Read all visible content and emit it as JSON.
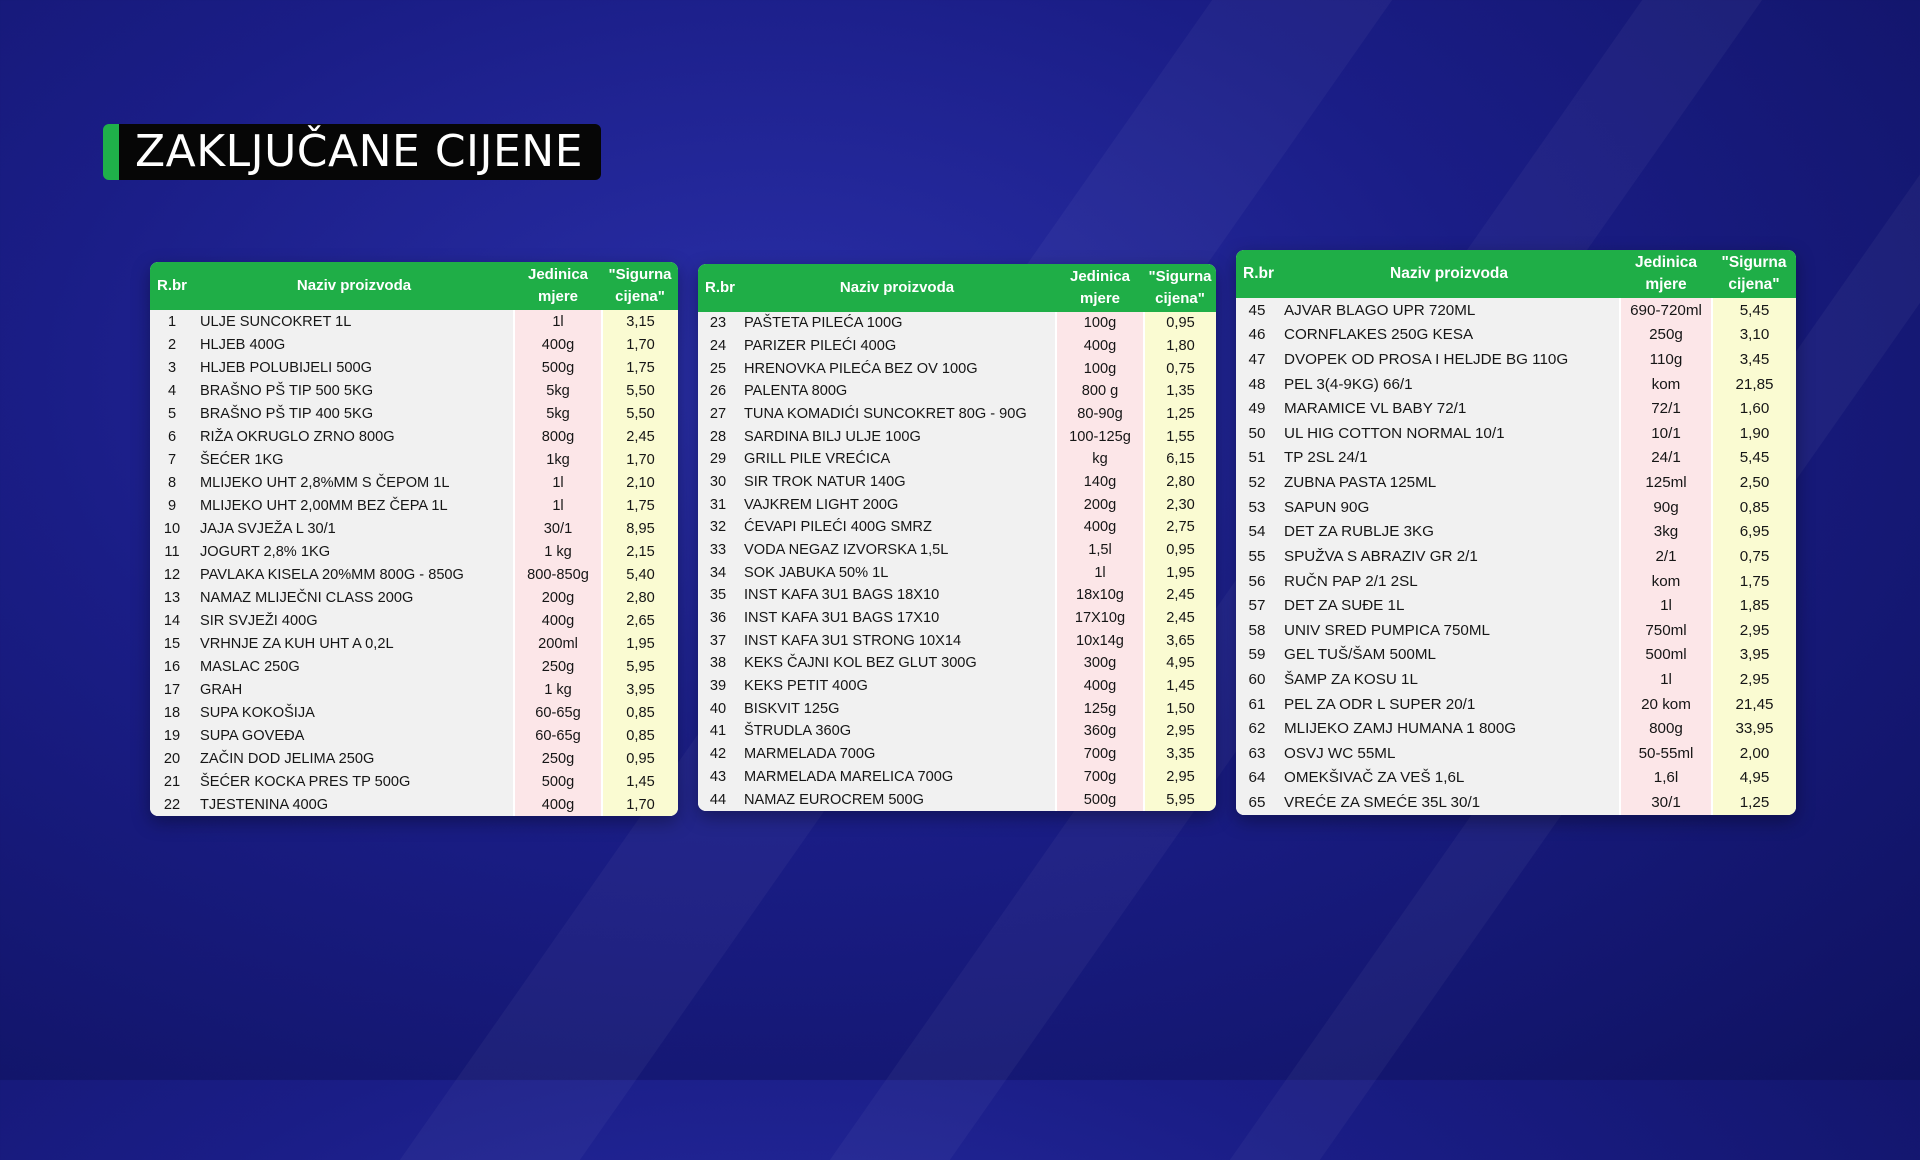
{
  "title": "ZAKLJUČANE CIJENE",
  "columns": {
    "rbr": "R.br",
    "name": "Naziv proizvoda",
    "unit_line1": "Jedinica",
    "unit_line2": "mjere",
    "price_line1": "\"Sigurna",
    "price_line2": "cijena\""
  },
  "tables": [
    {
      "rows": [
        {
          "rbr": "1",
          "name": "ULJE SUNCOKRET 1L",
          "unit": "1l",
          "price": "3,15"
        },
        {
          "rbr": "2",
          "name": "HLJEB 400G",
          "unit": "400g",
          "price": "1,70"
        },
        {
          "rbr": "3",
          "name": "HLJEB POLUBIJELI 500G",
          "unit": "500g",
          "price": "1,75"
        },
        {
          "rbr": "4",
          "name": "BRAŠNO PŠ TIP 500 5KG",
          "unit": "5kg",
          "price": "5,50"
        },
        {
          "rbr": "5",
          "name": "BRAŠNO PŠ TIP 400 5KG",
          "unit": "5kg",
          "price": "5,50"
        },
        {
          "rbr": "6",
          "name": "RIŽA OKRUGLO ZRNO 800G",
          "unit": "800g",
          "price": "2,45"
        },
        {
          "rbr": "7",
          "name": "ŠEĆER 1KG",
          "unit": "1kg",
          "price": "1,70"
        },
        {
          "rbr": "8",
          "name": "MLIJEKO UHT 2,8%MM S ČEPOM 1L",
          "unit": "1l",
          "price": "2,10"
        },
        {
          "rbr": "9",
          "name": "MLIJEKO UHT 2,00MM BEZ ČEPA 1L",
          "unit": "1l",
          "price": "1,75"
        },
        {
          "rbr": "10",
          "name": "JAJA SVJEŽA L 30/1",
          "unit": "30/1",
          "price": "8,95"
        },
        {
          "rbr": "11",
          "name": "JOGURT 2,8% 1KG",
          "unit": "1 kg",
          "price": "2,15"
        },
        {
          "rbr": "12",
          "name": "PAVLAKA KISELA 20%MM 800G - 850G",
          "unit": "800-850g",
          "price": "5,40"
        },
        {
          "rbr": "13",
          "name": "NAMAZ MLIJEČNI CLASS 200G",
          "unit": "200g",
          "price": "2,80"
        },
        {
          "rbr": "14",
          "name": "SIR SVJEŽI 400G",
          "unit": "400g",
          "price": "2,65"
        },
        {
          "rbr": "15",
          "name": "VRHNJE ZA KUH UHT A 0,2L",
          "unit": "200ml",
          "price": "1,95"
        },
        {
          "rbr": "16",
          "name": "MASLAC 250G",
          "unit": "250g",
          "price": "5,95"
        },
        {
          "rbr": "17",
          "name": "GRAH",
          "unit": "1 kg",
          "price": "3,95"
        },
        {
          "rbr": "18",
          "name": "SUPA KOKOŠIJA",
          "unit": "60-65g",
          "price": "0,85"
        },
        {
          "rbr": "19",
          "name": "SUPA GOVEĐA",
          "unit": "60-65g",
          "price": "0,85"
        },
        {
          "rbr": "20",
          "name": "ZAČIN DOD JELIMA 250G",
          "unit": "250g",
          "price": "0,95"
        },
        {
          "rbr": "21",
          "name": "ŠEĆER KOCKA PRES TP 500G",
          "unit": "500g",
          "price": "1,45"
        },
        {
          "rbr": "22",
          "name": "TJESTENINA 400G",
          "unit": "400g",
          "price": "1,70"
        }
      ]
    },
    {
      "rows": [
        {
          "rbr": "23",
          "name": "PAŠTETA PILEĆA 100G",
          "unit": "100g",
          "price": "0,95"
        },
        {
          "rbr": "24",
          "name": "PARIZER PILEĆI 400G",
          "unit": "400g",
          "price": "1,80"
        },
        {
          "rbr": "25",
          "name": "HRENOVKA PILEĆA BEZ OV 100G",
          "unit": "100g",
          "price": "0,75"
        },
        {
          "rbr": "26",
          "name": "PALENTA 800G",
          "unit": "800 g",
          "price": "1,35"
        },
        {
          "rbr": "27",
          "name": "TUNA KOMADIĆI SUNCOKRET 80G - 90G",
          "unit": "80-90g",
          "price": "1,25"
        },
        {
          "rbr": "28",
          "name": "SARDINA BILJ ULJE 100G",
          "unit": "100-125g",
          "price": "1,55"
        },
        {
          "rbr": "29",
          "name": "GRILL PILE VREĆICA",
          "unit": "kg",
          "price": "6,15"
        },
        {
          "rbr": "30",
          "name": "SIR TROK NATUR 140G",
          "unit": "140g",
          "price": "2,80"
        },
        {
          "rbr": "31",
          "name": "VAJKREM LIGHT 200G",
          "unit": "200g",
          "price": "2,30"
        },
        {
          "rbr": "32",
          "name": "ĆEVAPI PILEĆI 400G SMRZ",
          "unit": "400g",
          "price": "2,75"
        },
        {
          "rbr": "33",
          "name": "VODA NEGAZ IZVORSKA 1,5L",
          "unit": "1,5l",
          "price": "0,95"
        },
        {
          "rbr": "34",
          "name": "SOK JABUKA 50% 1L",
          "unit": "1l",
          "price": "1,95"
        },
        {
          "rbr": "35",
          "name": "INST KAFA 3U1 BAGS 18X10",
          "unit": "18x10g",
          "price": "2,45"
        },
        {
          "rbr": "36",
          "name": "INST KAFA 3U1 BAGS 17X10",
          "unit": "17X10g",
          "price": "2,45"
        },
        {
          "rbr": "37",
          "name": "INST KAFA 3U1 STRONG 10X14",
          "unit": "10x14g",
          "price": "3,65"
        },
        {
          "rbr": "38",
          "name": "KEKS ČAJNI KOL BEZ GLUT 300G",
          "unit": "300g",
          "price": "4,95"
        },
        {
          "rbr": "39",
          "name": "KEKS PETIT 400G",
          "unit": "400g",
          "price": "1,45"
        },
        {
          "rbr": "40",
          "name": "BISKVIT 125G",
          "unit": "125g",
          "price": "1,50"
        },
        {
          "rbr": "41",
          "name": "ŠTRUDLA 360G",
          "unit": "360g",
          "price": "2,95"
        },
        {
          "rbr": "42",
          "name": "MARMELADA 700G",
          "unit": "700g",
          "price": "3,35"
        },
        {
          "rbr": "43",
          "name": "MARMELADA MARELICA 700G",
          "unit": "700g",
          "price": "2,95"
        },
        {
          "rbr": "44",
          "name": "NAMAZ EUROCREM 500G",
          "unit": "500g",
          "price": "5,95"
        }
      ]
    },
    {
      "rows": [
        {
          "rbr": "45",
          "name": "AJVAR BLAGO UPR 720ML",
          "unit": "690-720ml",
          "price": "5,45"
        },
        {
          "rbr": "46",
          "name": "CORNFLAKES 250G KESA",
          "unit": "250g",
          "price": "3,10"
        },
        {
          "rbr": "47",
          "name": "DVOPEK OD PROSA I HELJDE BG 110G",
          "unit": "110g",
          "price": "3,45"
        },
        {
          "rbr": "48",
          "name": "PEL 3(4-9KG) 66/1",
          "unit": "kom",
          "price": "21,85"
        },
        {
          "rbr": "49",
          "name": "MARAMICE VL BABY 72/1",
          "unit": "72/1",
          "price": "1,60"
        },
        {
          "rbr": "50",
          "name": "UL HIG COTTON NORMAL 10/1",
          "unit": "10/1",
          "price": "1,90"
        },
        {
          "rbr": "51",
          "name": "TP 2SL 24/1",
          "unit": "24/1",
          "price": "5,45"
        },
        {
          "rbr": "52",
          "name": "ZUBNA PASTA 125ML",
          "unit": "125ml",
          "price": "2,50"
        },
        {
          "rbr": "53",
          "name": "SAPUN 90G",
          "unit": "90g",
          "price": "0,85"
        },
        {
          "rbr": "54",
          "name": "DET ZA RUBLJE 3KG",
          "unit": "3kg",
          "price": "6,95"
        },
        {
          "rbr": "55",
          "name": "SPUŽVA S ABRAZIV GR 2/1",
          "unit": "2/1",
          "price": "0,75"
        },
        {
          "rbr": "56",
          "name": "RUČN PAP 2/1 2SL",
          "unit": "kom",
          "price": "1,75"
        },
        {
          "rbr": "57",
          "name": "DET ZA SUĐE 1L",
          "unit": "1l",
          "price": "1,85"
        },
        {
          "rbr": "58",
          "name": "UNIV SRED PUMPICA 750ML",
          "unit": "750ml",
          "price": "2,95"
        },
        {
          "rbr": "59",
          "name": "GEL TUŠ/ŠAM 500ML",
          "unit": "500ml",
          "price": "3,95"
        },
        {
          "rbr": "60",
          "name": "ŠAMP ZA KOSU 1L",
          "unit": "1l",
          "price": "2,95"
        },
        {
          "rbr": "61",
          "name": "PEL ZA ODR L SUPER 20/1",
          "unit": "20 kom",
          "price": "21,45"
        },
        {
          "rbr": "62",
          "name": "MLIJEKO ZAMJ HUMANA 1 800G",
          "unit": "800g",
          "price": "33,95"
        },
        {
          "rbr": "63",
          "name": "OSVJ WC 55ML",
          "unit": "50-55ml",
          "price": "2,00"
        },
        {
          "rbr": "64",
          "name": "OMEKŠIVAČ ZA VEŠ 1,6L",
          "unit": "1,6l",
          "price": "4,95"
        },
        {
          "rbr": "65",
          "name": "VREĆE ZA SMEĆE 35L 30/1",
          "unit": "30/1",
          "price": "1,25"
        }
      ]
    }
  ]
}
